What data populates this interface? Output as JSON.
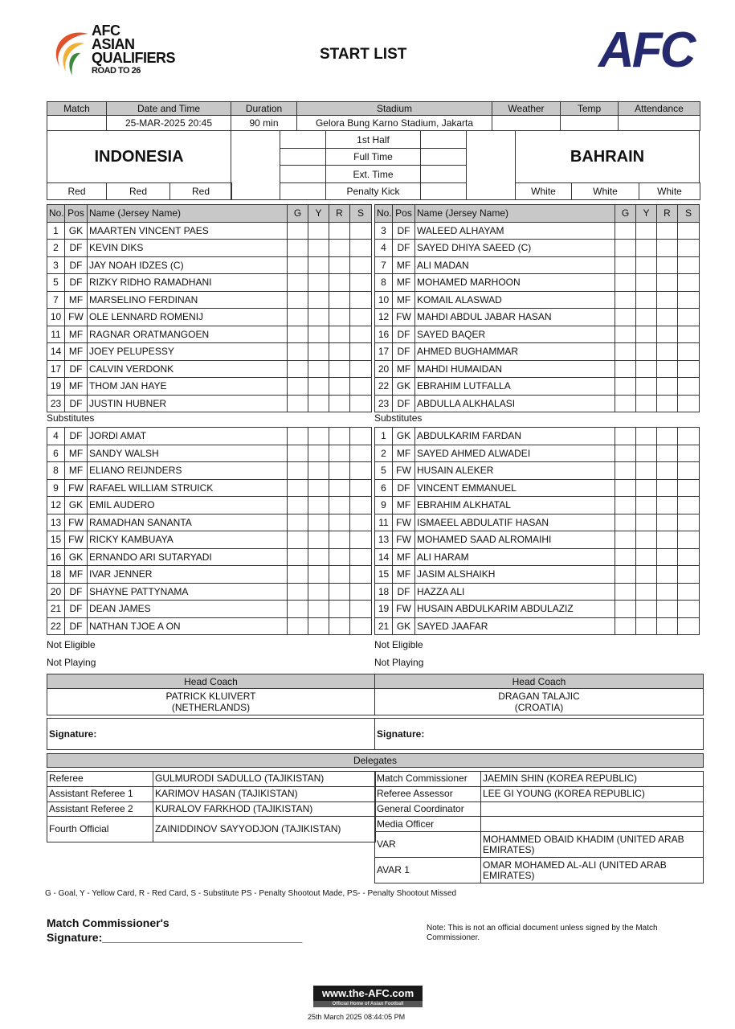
{
  "header": {
    "logo_lines": [
      "AFC",
      "ASIAN",
      "QUALIFIERS",
      "ROAD TO 26"
    ],
    "title": "START LIST",
    "afc_logo": "AFC"
  },
  "match_info": {
    "labels": [
      "Match",
      "Date and Time",
      "Duration",
      "Stadium",
      "Weather",
      "Temp",
      "Attendance"
    ],
    "values": [
      "",
      "25-MAR-2025 20:45",
      "90 min",
      "Gelora Bung Karno Stadium, Jakarta",
      "",
      "",
      ""
    ]
  },
  "home": {
    "name": "INDONESIA",
    "kit": [
      "Red",
      "Red",
      "Red"
    ]
  },
  "away": {
    "name": "BAHRAIN",
    "kit": [
      "White",
      "White",
      "White"
    ]
  },
  "periods": [
    "1st Half",
    "Full Time",
    "Ext. Time",
    "Penalty Kick"
  ],
  "columns": [
    "No.",
    "Pos",
    "Name (Jersey Name)",
    "G",
    "Y",
    "R",
    "S"
  ],
  "home_starters": [
    [
      "1",
      "GK",
      "MAARTEN VINCENT PAES"
    ],
    [
      "2",
      "DF",
      "KEVIN DIKS"
    ],
    [
      "3",
      "DF",
      "JAY NOAH IDZES (C)"
    ],
    [
      "5",
      "DF",
      "RIZKY RIDHO RAMADHANI"
    ],
    [
      "7",
      "MF",
      "MARSELINO FERDINAN"
    ],
    [
      "10",
      "FW",
      "OLE LENNARD ROMENIJ"
    ],
    [
      "11",
      "MF",
      "RAGNAR ORATMANGOEN"
    ],
    [
      "14",
      "MF",
      "JOEY PELUPESSY"
    ],
    [
      "17",
      "DF",
      "CALVIN VERDONK"
    ],
    [
      "19",
      "MF",
      "THOM JAN HAYE"
    ],
    [
      "23",
      "DF",
      "JUSTIN HUBNER"
    ]
  ],
  "away_starters": [
    [
      "3",
      "DF",
      "WALEED ALHAYAM"
    ],
    [
      "4",
      "DF",
      "SAYED DHIYA SAEED (C)"
    ],
    [
      "7",
      "MF",
      "ALI MADAN"
    ],
    [
      "8",
      "MF",
      "MOHAMED MARHOON"
    ],
    [
      "10",
      "MF",
      "KOMAIL ALASWAD"
    ],
    [
      "12",
      "FW",
      "MAHDI ABDUL JABAR HASAN"
    ],
    [
      "16",
      "DF",
      "SAYED BAQER"
    ],
    [
      "17",
      "DF",
      "AHMED BUGHAMMAR"
    ],
    [
      "20",
      "MF",
      "MAHDI HUMAIDAN"
    ],
    [
      "22",
      "GK",
      "EBRAHIM LUTFALLA"
    ],
    [
      "23",
      "DF",
      "ABDULLA ALKHALASI"
    ]
  ],
  "substitutes_label": "Substitutes",
  "home_subs": [
    [
      "4",
      "DF",
      "JORDI AMAT"
    ],
    [
      "6",
      "MF",
      "SANDY WALSH"
    ],
    [
      "8",
      "MF",
      "ELIANO REIJNDERS"
    ],
    [
      "9",
      "FW",
      "RAFAEL WILLIAM STRUICK"
    ],
    [
      "12",
      "GK",
      "EMIL AUDERO"
    ],
    [
      "13",
      "FW",
      "RAMADHAN SANANTA"
    ],
    [
      "15",
      "FW",
      "RICKY KAMBUAYA"
    ],
    [
      "16",
      "GK",
      "ERNANDO ARI SUTARYADI"
    ],
    [
      "18",
      "MF",
      "IVAR JENNER"
    ],
    [
      "20",
      "DF",
      "SHAYNE PATTYNAMA"
    ],
    [
      "21",
      "DF",
      "DEAN JAMES"
    ],
    [
      "22",
      "DF",
      "NATHAN TJOE A ON"
    ]
  ],
  "away_subs": [
    [
      "1",
      "GK",
      "ABDULKARIM FARDAN"
    ],
    [
      "2",
      "MF",
      "SAYED AHMED ALWADEI"
    ],
    [
      "5",
      "FW",
      "HUSAIN ALEKER"
    ],
    [
      "6",
      "DF",
      "VINCENT EMMANUEL"
    ],
    [
      "9",
      "MF",
      "EBRAHIM ALKHATAL"
    ],
    [
      "11",
      "FW",
      "ISMAEEL ABDULATIF HASAN"
    ],
    [
      "13",
      "FW",
      "MOHAMED SAAD ALROMAIHI"
    ],
    [
      "14",
      "MF",
      "ALI HARAM"
    ],
    [
      "15",
      "MF",
      "JASIM ALSHAIKH"
    ],
    [
      "18",
      "DF",
      "HAZZA ALI"
    ],
    [
      "19",
      "FW",
      "HUSAIN ABDULKARIM ABDULAZIZ"
    ],
    [
      "21",
      "GK",
      "SAYED JAAFAR"
    ]
  ],
  "not_eligible": "Not Eligible",
  "not_playing": "Not Playing",
  "coach_label": "Head Coach",
  "home_coach": {
    "name": "PATRICK KLUIVERT",
    "country": "(NETHERLANDS)"
  },
  "away_coach": {
    "name": "DRAGAN TALAJIC",
    "country": "(CROATIA)"
  },
  "signature_label": "Signature",
  "delegates_label": "Delegates",
  "officials_left": [
    [
      "Referee",
      "GULMURODI SADULLO (TAJIKISTAN)"
    ],
    [
      "Assistant Referee 1",
      "KARIMOV HASAN (TAJIKISTAN)"
    ],
    [
      "Assistant Referee 2",
      "KURALOV FARKHOD (TAJIKISTAN)"
    ],
    [
      "Fourth Official",
      "ZAINIDDINOV SAYYODJON (TAJIKISTAN)"
    ]
  ],
  "officials_right": [
    [
      "Match Commissioner",
      "JAEMIN SHIN (KOREA REPUBLIC)"
    ],
    [
      "Referee Assessor",
      "LEE GI YOUNG (KOREA REPUBLIC)"
    ],
    [
      "General Coordinator",
      ""
    ],
    [
      "Media Officer",
      ""
    ],
    [
      "VAR",
      "MOHAMMED OBAID KHADIM (UNITED ARAB EMIRATES)"
    ],
    [
      "AVAR 1",
      "OMAR MOHAMED AL-ALI (UNITED ARAB EMIRATES)"
    ]
  ],
  "legend": "G - Goal, Y - Yellow Card, R - Red Card, S - Substitute PS - Penalty Shootout Made, PS- - Penalty Shootout Missed",
  "commissioner_sig": {
    "line1": "Match Commissioner's",
    "line2": "Signature:________________________________"
  },
  "note": "Note: This is not an official document unless signed by the Match Commissioner.",
  "footer": {
    "site": "www.the-AFC.com",
    "tagline": "Official Home of Asian Football",
    "timestamp": "25th March 2025 08:44:05 PM"
  }
}
